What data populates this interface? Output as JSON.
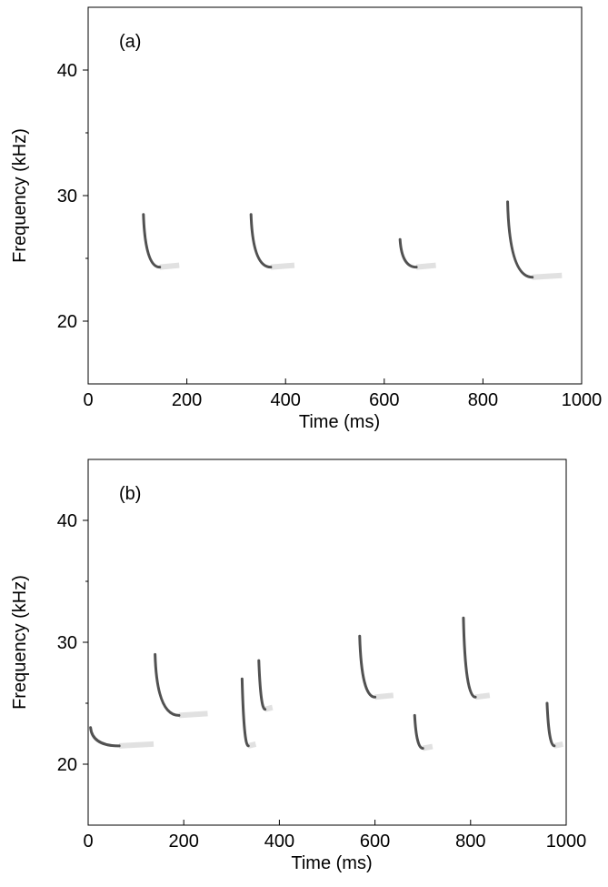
{
  "chart_data": [
    {
      "type": "spectrogram",
      "label": "(a)",
      "x_label": "Time (ms)",
      "y_label": "Frequency (kHz)",
      "xlim": [
        0,
        1000
      ],
      "xticks": [
        0,
        200,
        400,
        600,
        800,
        1000
      ],
      "ylim": [
        15,
        45
      ],
      "yticks": [
        20,
        30,
        40
      ],
      "yminor": [
        25,
        35
      ],
      "color": "#333333",
      "calls": {
        "start": [
          112,
          330,
          632,
          850
        ],
        "end": [
          145,
          370,
          665,
          900
        ],
        "fmax": [
          28.5,
          28.5,
          26.5,
          29.5
        ],
        "fmin": [
          24.3,
          24.3,
          24.3,
          23.5
        ]
      }
    },
    {
      "type": "spectrogram",
      "label": "(b)",
      "x_label": "Time (ms)",
      "y_label": "Frequency (kHz)",
      "xlim": [
        0,
        1000
      ],
      "xticks": [
        0,
        200,
        400,
        600,
        800,
        1000
      ],
      "ylim": [
        15,
        45
      ],
      "yticks": [
        20,
        30,
        40
      ],
      "yminor": [
        25,
        35
      ],
      "color": "#333333",
      "calls": {
        "start": [
          5,
          140,
          322,
          357,
          568,
          683,
          785,
          960
        ],
        "end": [
          65,
          190,
          335,
          370,
          600,
          700,
          810,
          975
        ],
        "fmax": [
          23,
          29,
          27,
          28.5,
          30.5,
          24,
          32,
          25
        ],
        "fmin": [
          21.5,
          24,
          21.5,
          24.5,
          25.5,
          21.3,
          25.5,
          21.5
        ]
      }
    }
  ]
}
